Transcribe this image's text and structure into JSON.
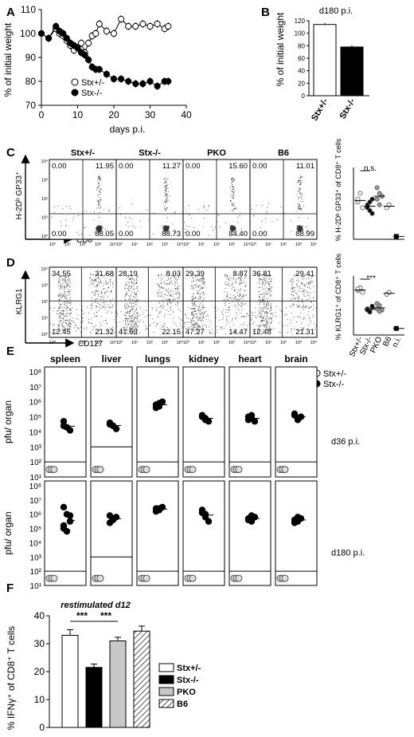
{
  "panels": {
    "A": {
      "label": "A",
      "chart_data": {
        "type": "line",
        "xlabel": "days p.i.",
        "ylabel": "% of initial weight",
        "xlim": [
          0,
          40
        ],
        "ylim": [
          70,
          110
        ],
        "xticks": [
          "0",
          "10",
          "20",
          "30",
          "40"
        ],
        "yticks": [
          "70",
          "80",
          "90",
          "100",
          "110"
        ],
        "legend_position": "bottom-left",
        "series": [
          {
            "name": "Stx+/-",
            "marker": "open-circle",
            "x": [
              0,
              2,
              4,
              5,
              6,
              7,
              8,
              9,
              10,
              11,
              12,
              13,
              14,
              15,
              16,
              18,
              20,
              22,
              24,
              26,
              28,
              30,
              32,
              34,
              35
            ],
            "y": [
              100,
              98,
              102,
              100,
              99,
              97,
              95,
              93,
              94,
              96,
              92,
              96,
              99,
              100,
              104,
              101,
              100,
              106,
              103,
              103,
              104,
              103,
              104,
              102,
              103
            ]
          },
          {
            "name": "Stx-/-",
            "marker": "filled-circle",
            "x": [
              0,
              2,
              4,
              5,
              6,
              7,
              8,
              9,
              10,
              11,
              12,
              13,
              14,
              15,
              16,
              18,
              20,
              22,
              24,
              26,
              28,
              30,
              32,
              34,
              35
            ],
            "y": [
              100,
              98,
              103,
              101,
              100,
              98,
              96,
              95,
              94,
              92,
              91,
              89,
              86,
              85,
              85,
              83,
              81,
              81,
              80,
              79,
              79,
              80,
              78,
              80,
              80
            ]
          }
        ]
      }
    },
    "B": {
      "label": "B",
      "chart_data": {
        "type": "bar",
        "title": "d180 p.i.",
        "ylabel": "% of initial weight",
        "ylim": [
          0,
          120
        ],
        "yticks": [
          "0",
          "20",
          "40",
          "60",
          "80",
          "100",
          "120"
        ],
        "categories": [
          "Stx+/-",
          "Stx-/-"
        ],
        "values": [
          114,
          78
        ],
        "fills": [
          "#ffffff",
          "#000000"
        ]
      }
    },
    "C": {
      "label": "C",
      "y_axis_label": "H-2Dᵇ GP33⁺",
      "x_axis_label": "CD8",
      "ticks": [
        "10⁰",
        "10¹",
        "10²",
        "10³",
        "10⁴"
      ],
      "plots": [
        {
          "title": "Stx+/-",
          "ul": "0.00",
          "ur": "11.95",
          "ll": "0.00",
          "lr": "88.05"
        },
        {
          "title": "Stx-/-",
          "ul": "0.00",
          "ur": "11.27",
          "ll": "0.00",
          "lr": "88.73"
        },
        {
          "title": "PKO",
          "ul": "0.00",
          "ur": "15.60",
          "ll": "0.00",
          "lr": "84.40"
        },
        {
          "title": "B6",
          "ul": "0.00",
          "ur": "11.01",
          "ll": "0.00",
          "lr": "88.99"
        }
      ],
      "summary": {
        "ylabel": "% H-2Dᵇ GP33⁺ of CD8⁺ T cells",
        "significance": "n.s.",
        "chart_data": {
          "type": "scatter",
          "categories": [
            "Stx+/-",
            "Stx-/-",
            "PKO",
            "B6",
            "n.i."
          ],
          "values": [
            [
              13,
              16,
              11,
              14
            ],
            [
              12,
              10,
              14,
              11,
              13,
              9
            ],
            [
              18,
              12,
              15,
              14,
              16
            ],
            [
              11,
              12
            ],
            [
              1
            ]
          ]
        }
      }
    },
    "D": {
      "label": "D",
      "y_axis_label": "KLRG1",
      "x_axis_label": "CD127",
      "ticks": [
        "10⁰",
        "10¹",
        "10²",
        "10³",
        "10⁴"
      ],
      "plots": [
        {
          "ul": "34.55",
          "ur": "31.68",
          "ll": "12.45",
          "lr": "21.32"
        },
        {
          "ul": "28.19",
          "ur": "8.03",
          "ll": "41.63",
          "lr": "22.15"
        },
        {
          "ul": "29.39",
          "ur": "8.87",
          "ll": "47.27",
          "lr": "14.47"
        },
        {
          "ul": "36.81",
          "ur": "29.41",
          "ll": "12.48",
          "lr": "21.31"
        }
      ],
      "summary": {
        "ylabel": "% KLRG1⁺ of CD8⁺ T cells",
        "significance": "***",
        "categories": [
          "Stx+/-",
          "Stx-/-",
          "PKO",
          "B6",
          "n.i."
        ],
        "chart_data": {
          "type": "scatter",
          "categories": [
            "Stx+/-",
            "Stx-/-",
            "PKO",
            "B6",
            "n.i."
          ],
          "values": [
            [
              68,
              72,
              65,
              70
            ],
            [
              40,
              36,
              42,
              38,
              35,
              44
            ],
            [
              40,
              45,
              38,
              48,
              36
            ],
            [
              62,
              65
            ],
            [
              10
            ]
          ]
        }
      }
    },
    "E": {
      "label": "E",
      "ylabel": "pfu/ organ",
      "yticks": [
        "10¹",
        "10²",
        "10³",
        "10⁴",
        "10⁵",
        "10⁶",
        "10⁷",
        "10⁸"
      ],
      "organs": [
        "spleen",
        "liver",
        "lungs",
        "kidney",
        "heart",
        "brain"
      ],
      "legend": [
        "Stx+/-",
        "Stx-/-"
      ],
      "rows": [
        {
          "label": "d36 p.i.",
          "detection_limits": [
            2,
            3,
            2,
            2,
            2,
            2
          ],
          "chart_data": {
            "type": "scatter",
            "values": [
              [
                4.7,
                4.3,
                4.1,
                4.4
              ],
              [
                4.6,
                4.4,
                4.2,
                4.5
              ],
              [
                5.8,
                5.7,
                6.0,
                5.6,
                5.9
              ],
              [
                5.0,
                4.8,
                4.7,
                5.1,
                4.9
              ],
              [
                5.0,
                4.9,
                4.7,
                4.8,
                5.1
              ],
              [
                5.1,
                4.9,
                5.0,
                5.2,
                4.8
              ]
            ]
          }
        },
        {
          "label": "d180 p.i.",
          "detection_limits": [
            2,
            3,
            2,
            2,
            2,
            2
          ],
          "chart_data": {
            "type": "scatter",
            "values": [
              [
                6.5,
                6.0,
                5.5,
                5.0,
                4.8,
                5.9,
                5.2
              ],
              [
                5.9,
                5.6,
                5.8,
                5.4,
                5.7
              ],
              [
                6.4,
                6.3,
                6.5,
                6.2,
                6.4
              ],
              [
                6.1,
                5.8,
                5.5,
                6.3,
                6.0
              ],
              [
                5.7,
                5.5,
                5.8,
                5.6,
                5.9
              ],
              [
                5.6,
                5.5,
                5.7,
                5.4,
                5.8
              ]
            ]
          }
        }
      ]
    },
    "F": {
      "label": "F",
      "chart_data": {
        "type": "bar",
        "title": "restimulated d12",
        "ylabel": "% IFNγ⁺ of CD8⁺ T cells",
        "ylim": [
          0,
          40
        ],
        "yticks": [
          "0",
          "10",
          "20",
          "30",
          "40"
        ],
        "categories": [
          "Stx+/-",
          "Stx-/-",
          "PKO",
          "B6"
        ],
        "values": [
          33,
          21.5,
          31,
          34.5
        ],
        "errors": [
          2,
          1.2,
          1.3,
          1.8
        ],
        "fills": [
          "#ffffff",
          "#000000",
          "#c8c8c8",
          "hatched"
        ],
        "significance": [
          "***",
          "***"
        ]
      }
    }
  }
}
